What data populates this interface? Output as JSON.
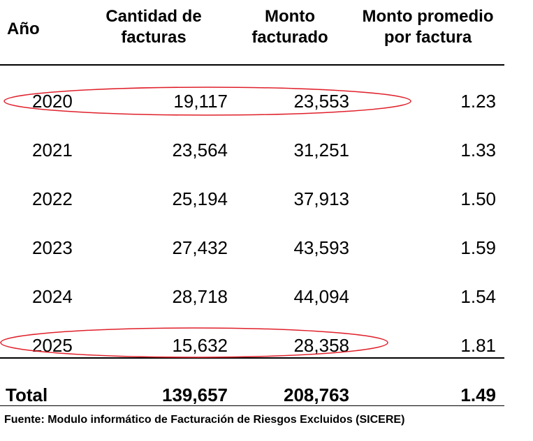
{
  "headers": {
    "year": "Año",
    "qty_line1": "Cantidad de",
    "qty_line2": "facturas",
    "amt_line1": "Monto",
    "amt_line2": "facturado",
    "avg_line1": "Monto promedio",
    "avg_line2": "por factura"
  },
  "rows": [
    {
      "year": "2020",
      "qty": "19,117",
      "amt": "23,553",
      "avg": "1.23",
      "highlighted": true
    },
    {
      "year": "2021",
      "qty": "23,564",
      "amt": "31,251",
      "avg": "1.33",
      "highlighted": false
    },
    {
      "year": "2022",
      "qty": "25,194",
      "amt": "37,913",
      "avg": "1.50",
      "highlighted": false
    },
    {
      "year": "2023",
      "qty": "27,432",
      "amt": "43,593",
      "avg": "1.59",
      "highlighted": false
    },
    {
      "year": "2024",
      "qty": "28,718",
      "amt": "44,094",
      "avg": "1.54",
      "highlighted": false
    },
    {
      "year": "2025",
      "qty": "15,632",
      "amt": "28,358",
      "avg": "1.81",
      "highlighted": true
    }
  ],
  "total": {
    "label": "Total",
    "qty": "139,657",
    "amt": "208,763",
    "avg": "1.49"
  },
  "source": "Fuente: Modulo informático de Facturación de Riesgos Excluidos (SICERE)",
  "colors": {
    "highlight": "#e0202a",
    "text": "#000000",
    "rule": "#000000"
  }
}
